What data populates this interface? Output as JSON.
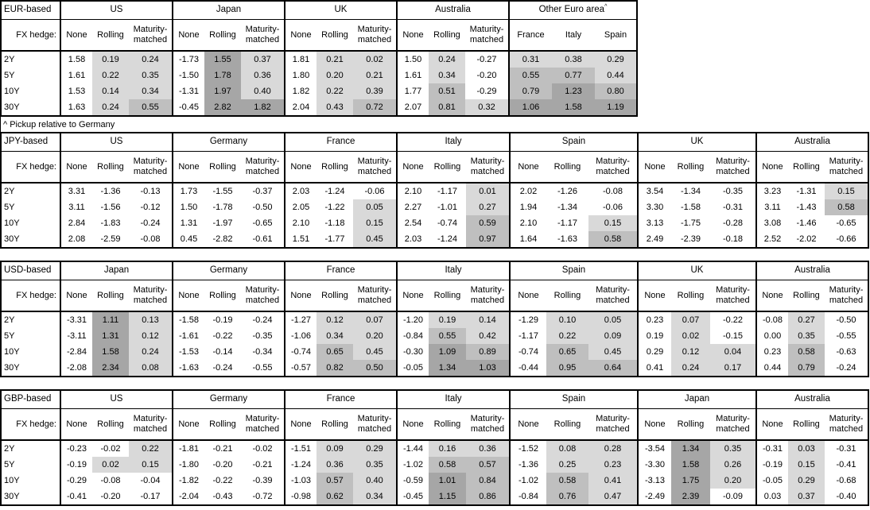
{
  "footnote": "^ Pickup relative to Germany",
  "hedge_label": "FX hedge:",
  "row_labels": [
    "2Y",
    "5Y",
    "10Y",
    "30Y"
  ],
  "shading": {
    "colors": {
      "light": "#d9d9d9",
      "medium": "#bfbfbf",
      "dark": "#a6a6a6"
    },
    "rules": [
      {
        "min": 1.0,
        "level": "dark"
      },
      {
        "min": 0.5,
        "level": "medium"
      },
      {
        "min": 0.0,
        "level": "light"
      }
    ]
  },
  "tables": [
    {
      "base": "EUR-based",
      "groups": [
        {
          "name": "US",
          "columns": [
            "None",
            "Rolling",
            "Maturity-matched"
          ],
          "shaded_columns": [
            1,
            2
          ],
          "rows": [
            [
              "1.58",
              "0.19",
              "0.24"
            ],
            [
              "1.61",
              "0.22",
              "0.35"
            ],
            [
              "1.53",
              "0.14",
              "0.34"
            ],
            [
              "1.63",
              "0.24",
              "0.55"
            ]
          ]
        },
        {
          "name": "Japan",
          "columns": [
            "None",
            "Rolling",
            "Maturity-matched"
          ],
          "shaded_columns": [
            1,
            2
          ],
          "rows": [
            [
              "-1.73",
              "1.55",
              "0.37"
            ],
            [
              "-1.50",
              "1.78",
              "0.36"
            ],
            [
              "-1.31",
              "1.97",
              "0.40"
            ],
            [
              "-0.45",
              "2.82",
              "1.82"
            ]
          ]
        },
        {
          "name": "UK",
          "columns": [
            "None",
            "Rolling",
            "Maturity-matched"
          ],
          "shaded_columns": [
            1,
            2
          ],
          "rows": [
            [
              "1.81",
              "0.21",
              "0.02"
            ],
            [
              "1.80",
              "0.20",
              "0.21"
            ],
            [
              "1.82",
              "0.22",
              "0.39"
            ],
            [
              "2.04",
              "0.43",
              "0.72"
            ]
          ]
        },
        {
          "name": "Australia",
          "columns": [
            "None",
            "Rolling",
            "Maturity-matched"
          ],
          "shaded_columns": [
            1,
            2
          ],
          "rows": [
            [
              "1.50",
              "0.24",
              "-0.27"
            ],
            [
              "1.61",
              "0.34",
              "-0.20"
            ],
            [
              "1.77",
              "0.51",
              "-0.29"
            ],
            [
              "2.07",
              "0.81",
              "0.32"
            ]
          ]
        },
        {
          "name": "Other Euro area",
          "note_mark": "^",
          "columns": [
            "France",
            "Italy",
            "Spain"
          ],
          "shaded_columns": [
            0,
            1,
            2
          ],
          "rows": [
            [
              "0.31",
              "0.38",
              "0.29"
            ],
            [
              "0.55",
              "0.77",
              "0.44"
            ],
            [
              "0.79",
              "1.23",
              "0.80"
            ],
            [
              "1.06",
              "1.58",
              "1.19"
            ]
          ]
        }
      ]
    },
    {
      "base": "JPY-based",
      "groups": [
        {
          "name": "US",
          "columns": [
            "None",
            "Rolling",
            "Maturity-matched"
          ],
          "shaded_columns": [
            1,
            2
          ],
          "rows": [
            [
              "3.31",
              "-1.36",
              "-0.13"
            ],
            [
              "3.11",
              "-1.56",
              "-0.12"
            ],
            [
              "2.84",
              "-1.83",
              "-0.24"
            ],
            [
              "2.08",
              "-2.59",
              "-0.08"
            ]
          ]
        },
        {
          "name": "Germany",
          "columns": [
            "None",
            "Rolling",
            "Maturity-matched"
          ],
          "shaded_columns": [
            1,
            2
          ],
          "rows": [
            [
              "1.73",
              "-1.55",
              "-0.37"
            ],
            [
              "1.50",
              "-1.78",
              "-0.50"
            ],
            [
              "1.31",
              "-1.97",
              "-0.65"
            ],
            [
              "0.45",
              "-2.82",
              "-0.61"
            ]
          ]
        },
        {
          "name": "France",
          "columns": [
            "None",
            "Rolling",
            "Maturity-matched"
          ],
          "shaded_columns": [
            1,
            2
          ],
          "rows": [
            [
              "2.03",
              "-1.24",
              "-0.06"
            ],
            [
              "2.05",
              "-1.22",
              "0.05"
            ],
            [
              "2.10",
              "-1.18",
              "0.15"
            ],
            [
              "1.51",
              "-1.77",
              "0.45"
            ]
          ]
        },
        {
          "name": "Italy",
          "columns": [
            "None",
            "Rolling",
            "Maturity-matched"
          ],
          "shaded_columns": [
            1,
            2
          ],
          "rows": [
            [
              "2.10",
              "-1.17",
              "0.01"
            ],
            [
              "2.27",
              "-1.01",
              "0.27"
            ],
            [
              "2.54",
              "-0.74",
              "0.59"
            ],
            [
              "2.03",
              "-1.24",
              "0.97"
            ]
          ]
        },
        {
          "name": "Spain",
          "columns": [
            "None",
            "Rolling",
            "Maturity-matched"
          ],
          "shaded_columns": [
            1,
            2
          ],
          "rows": [
            [
              "2.02",
              "-1.26",
              "-0.08"
            ],
            [
              "1.94",
              "-1.34",
              "-0.06"
            ],
            [
              "2.10",
              "-1.17",
              "0.15"
            ],
            [
              "1.64",
              "-1.63",
              "0.58"
            ]
          ]
        },
        {
          "name": "UK",
          "columns": [
            "None",
            "Rolling",
            "Maturity-matched"
          ],
          "shaded_columns": [
            1,
            2
          ],
          "rows": [
            [
              "3.54",
              "-1.34",
              "-0.35"
            ],
            [
              "3.30",
              "-1.58",
              "-0.31"
            ],
            [
              "3.13",
              "-1.75",
              "-0.28"
            ],
            [
              "2.49",
              "-2.39",
              "-0.18"
            ]
          ]
        },
        {
          "name": "Australia",
          "columns": [
            "None",
            "Rolling",
            "Maturity-matched"
          ],
          "shaded_columns": [
            1,
            2
          ],
          "rows": [
            [
              "3.23",
              "-1.31",
              "0.15"
            ],
            [
              "3.11",
              "-1.43",
              "0.58"
            ],
            [
              "3.08",
              "-1.46",
              "-0.65"
            ],
            [
              "2.52",
              "-2.02",
              "-0.66"
            ]
          ]
        }
      ]
    },
    {
      "base": "USD-based",
      "groups": [
        {
          "name": "Japan",
          "columns": [
            "None",
            "Rolling",
            "Maturity-matched"
          ],
          "shaded_columns": [
            1,
            2
          ],
          "rows": [
            [
              "-3.31",
              "1.11",
              "0.13"
            ],
            [
              "-3.11",
              "1.31",
              "0.12"
            ],
            [
              "-2.84",
              "1.58",
              "0.24"
            ],
            [
              "-2.08",
              "2.34",
              "0.08"
            ]
          ]
        },
        {
          "name": "Germany",
          "columns": [
            "None",
            "Rolling",
            "Maturity-matched"
          ],
          "shaded_columns": [
            1,
            2
          ],
          "rows": [
            [
              "-1.58",
              "-0.19",
              "-0.24"
            ],
            [
              "-1.61",
              "-0.22",
              "-0.35"
            ],
            [
              "-1.53",
              "-0.14",
              "-0.34"
            ],
            [
              "-1.63",
              "-0.24",
              "-0.55"
            ]
          ]
        },
        {
          "name": "France",
          "columns": [
            "None",
            "Rolling",
            "Maturity-matched"
          ],
          "shaded_columns": [
            1,
            2
          ],
          "rows": [
            [
              "-1.27",
              "0.12",
              "0.07"
            ],
            [
              "-1.06",
              "0.34",
              "0.20"
            ],
            [
              "-0.74",
              "0.65",
              "0.45"
            ],
            [
              "-0.57",
              "0.82",
              "0.50"
            ]
          ]
        },
        {
          "name": "Italy",
          "columns": [
            "None",
            "Rolling",
            "Maturity-matched"
          ],
          "shaded_columns": [
            1,
            2
          ],
          "rows": [
            [
              "-1.20",
              "0.19",
              "0.14"
            ],
            [
              "-0.84",
              "0.55",
              "0.42"
            ],
            [
              "-0.30",
              "1.09",
              "0.89"
            ],
            [
              "-0.05",
              "1.34",
              "1.03"
            ]
          ]
        },
        {
          "name": "Spain",
          "columns": [
            "None",
            "Rolling",
            "Maturity-matched"
          ],
          "shaded_columns": [
            1,
            2
          ],
          "rows": [
            [
              "-1.29",
              "0.10",
              "0.05"
            ],
            [
              "-1.17",
              "0.22",
              "0.09"
            ],
            [
              "-0.74",
              "0.65",
              "0.45"
            ],
            [
              "-0.44",
              "0.95",
              "0.64"
            ]
          ]
        },
        {
          "name": "UK",
          "columns": [
            "None",
            "Rolling",
            "Maturity-matched"
          ],
          "shaded_columns": [
            1,
            2
          ],
          "rows": [
            [
              "0.23",
              "0.07",
              "-0.22"
            ],
            [
              "0.19",
              "0.02",
              "-0.15"
            ],
            [
              "0.29",
              "0.12",
              "0.04"
            ],
            [
              "0.41",
              "0.24",
              "0.17"
            ]
          ]
        },
        {
          "name": "Australia",
          "columns": [
            "None",
            "Rolling",
            "Maturity-matched"
          ],
          "shaded_columns": [
            1,
            2
          ],
          "rows": [
            [
              "-0.08",
              "0.27",
              "-0.50"
            ],
            [
              "0.00",
              "0.35",
              "-0.55"
            ],
            [
              "0.23",
              "0.58",
              "-0.63"
            ],
            [
              "0.44",
              "0.79",
              "-0.24"
            ]
          ]
        }
      ]
    },
    {
      "base": "GBP-based",
      "groups": [
        {
          "name": "US",
          "columns": [
            "None",
            "Rolling",
            "Maturity-matched"
          ],
          "shaded_columns": [
            1,
            2
          ],
          "rows": [
            [
              "-0.23",
              "-0.02",
              "0.22"
            ],
            [
              "-0.19",
              "0.02",
              "0.15"
            ],
            [
              "-0.29",
              "-0.08",
              "-0.04"
            ],
            [
              "-0.41",
              "-0.20",
              "-0.17"
            ]
          ]
        },
        {
          "name": "Germany",
          "columns": [
            "None",
            "Rolling",
            "Maturity-matched"
          ],
          "shaded_columns": [
            1,
            2
          ],
          "rows": [
            [
              "-1.81",
              "-0.21",
              "-0.02"
            ],
            [
              "-1.80",
              "-0.20",
              "-0.21"
            ],
            [
              "-1.82",
              "-0.22",
              "-0.39"
            ],
            [
              "-2.04",
              "-0.43",
              "-0.72"
            ]
          ]
        },
        {
          "name": "France",
          "columns": [
            "None",
            "Rolling",
            "Maturity-matched"
          ],
          "shaded_columns": [
            1,
            2
          ],
          "rows": [
            [
              "-1.51",
              "0.09",
              "0.29"
            ],
            [
              "-1.24",
              "0.36",
              "0.35"
            ],
            [
              "-1.03",
              "0.57",
              "0.40"
            ],
            [
              "-0.98",
              "0.62",
              "0.34"
            ]
          ]
        },
        {
          "name": "Italy",
          "columns": [
            "None",
            "Rolling",
            "Maturity-matched"
          ],
          "shaded_columns": [
            1,
            2
          ],
          "rows": [
            [
              "-1.44",
              "0.16",
              "0.36"
            ],
            [
              "-1.02",
              "0.58",
              "0.57"
            ],
            [
              "-0.59",
              "1.01",
              "0.84"
            ],
            [
              "-0.45",
              "1.15",
              "0.86"
            ]
          ]
        },
        {
          "name": "Spain",
          "columns": [
            "None",
            "Rolling",
            "Maturity-matched"
          ],
          "shaded_columns": [
            1,
            2
          ],
          "rows": [
            [
              "-1.52",
              "0.08",
              "0.28"
            ],
            [
              "-1.36",
              "0.25",
              "0.23"
            ],
            [
              "-1.02",
              "0.58",
              "0.41"
            ],
            [
              "-0.84",
              "0.76",
              "0.47"
            ]
          ]
        },
        {
          "name": "Japan",
          "columns": [
            "None",
            "Rolling",
            "Maturity-matched"
          ],
          "shaded_columns": [
            1,
            2
          ],
          "rows": [
            [
              "-3.54",
              "1.34",
              "0.35"
            ],
            [
              "-3.30",
              "1.58",
              "0.26"
            ],
            [
              "-3.13",
              "1.75",
              "0.20"
            ],
            [
              "-2.49",
              "2.39",
              "-0.09"
            ]
          ]
        },
        {
          "name": "Australia",
          "columns": [
            "None",
            "Rolling",
            "Maturity-matched"
          ],
          "shaded_columns": [
            1,
            2
          ],
          "rows": [
            [
              "-0.31",
              "0.03",
              "-0.31"
            ],
            [
              "-0.19",
              "0.15",
              "-0.41"
            ],
            [
              "-0.05",
              "0.29",
              "-0.68"
            ],
            [
              "0.03",
              "0.37",
              "-0.40"
            ]
          ]
        }
      ]
    }
  ]
}
